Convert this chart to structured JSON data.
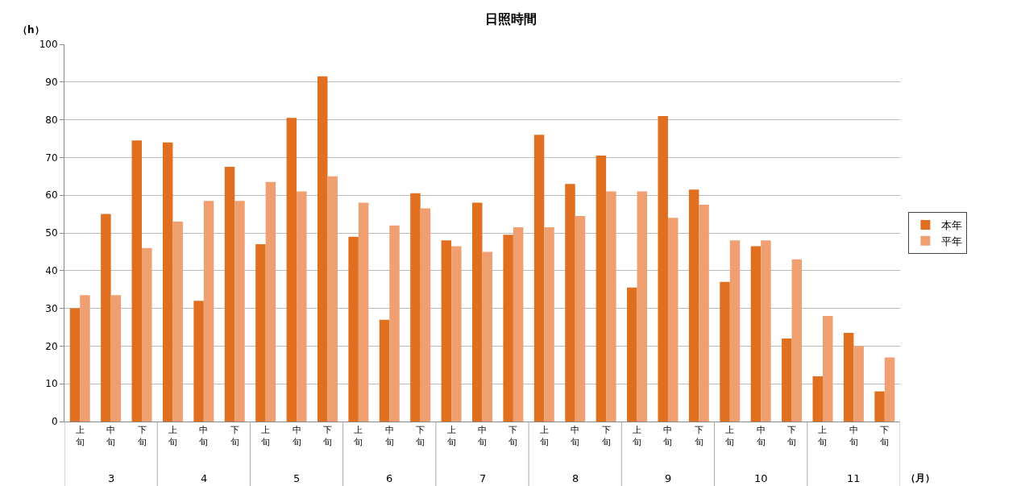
{
  "chart_data": {
    "type": "bar",
    "title": "日照時間",
    "ylabel": "（h）",
    "xlabel": "（月）",
    "categories": [
      "上旬",
      "中旬",
      "下旬",
      "上旬",
      "中旬",
      "下旬",
      "上旬",
      "中旬",
      "下旬",
      "上旬",
      "中旬",
      "下旬",
      "上旬",
      "中旬",
      "下旬",
      "上旬",
      "中旬",
      "下旬",
      "上旬",
      "中旬",
      "下旬",
      "上旬",
      "中旬",
      "下旬",
      "上旬",
      "中旬",
      "下旬"
    ],
    "series": [
      {
        "name": "本年",
        "color": "#e07020",
        "values": [
          30,
          55,
          74.5,
          74,
          32,
          67.5,
          47,
          80.5,
          91.5,
          49,
          27,
          60.5,
          48,
          58,
          49.5,
          76,
          63,
          70.5,
          35.5,
          81,
          61.5,
          37,
          46.5,
          22,
          12,
          23.5,
          8
        ]
      },
      {
        "name": "平年",
        "color": "#f0a070",
        "values": [
          33.5,
          33.5,
          46,
          53,
          58.5,
          58.5,
          63.5,
          61,
          65,
          58,
          52,
          56.5,
          46.5,
          45,
          51.5,
          51.5,
          54.5,
          61,
          61,
          54,
          57.5,
          48,
          48,
          43,
          28,
          20,
          17
        ]
      }
    ],
    "annotations": [
      "3",
      "4",
      "5",
      "6",
      "7",
      "8",
      "9",
      "10",
      "11"
    ],
    "ylim": [
      0,
      100
    ],
    "yticks": [
      0,
      10,
      20,
      30,
      40,
      50,
      60,
      70,
      80,
      90,
      100
    ],
    "grid": "y",
    "legend": "right"
  }
}
